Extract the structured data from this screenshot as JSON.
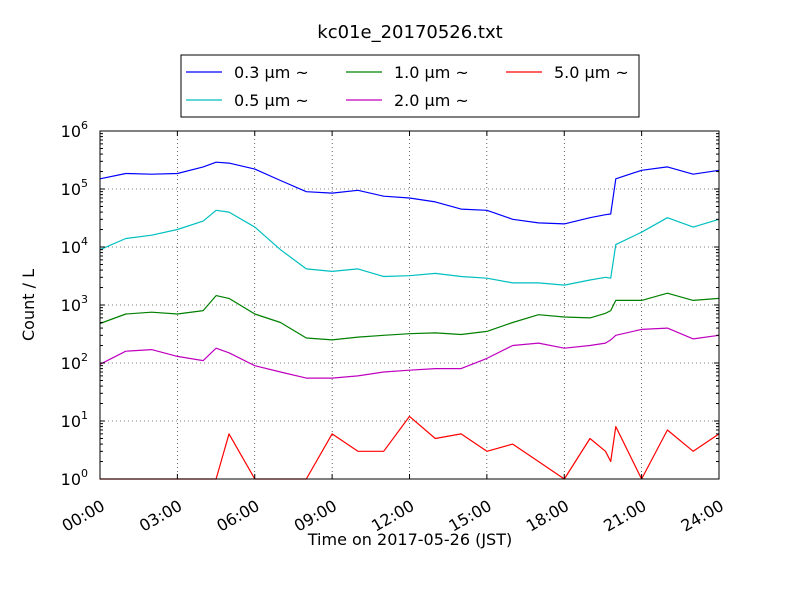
{
  "chart_data": {
    "type": "line",
    "title": "kc01e_20170526.txt",
    "xlabel": "Time on 2017-05-26 (JST)",
    "ylabel": "Count / L",
    "y_scale": "log",
    "ylim": [
      1,
      1000000
    ],
    "xlim_hours": [
      0,
      24
    ],
    "x_tick_labels": [
      "00:00",
      "03:00",
      "06:00",
      "09:00",
      "12:00",
      "15:00",
      "18:00",
      "21:00",
      "24:00"
    ],
    "y_tick_labels": [
      {
        "base": "10",
        "exp": "0"
      },
      {
        "base": "10",
        "exp": "1"
      },
      {
        "base": "10",
        "exp": "2"
      },
      {
        "base": "10",
        "exp": "3"
      },
      {
        "base": "10",
        "exp": "4"
      },
      {
        "base": "10",
        "exp": "5"
      },
      {
        "base": "10",
        "exp": "6"
      }
    ],
    "grid": true,
    "legend_position": "top-center",
    "x_hours": [
      0,
      1,
      2,
      3,
      4,
      4.5,
      5,
      6,
      7,
      8,
      9,
      10,
      11,
      12,
      13,
      14,
      15,
      16,
      17,
      18,
      19,
      19.6,
      19.8,
      20,
      21,
      22,
      23,
      24
    ],
    "series": [
      {
        "name": "0.3 μm ~",
        "color": "#0000ff",
        "values": [
          150000,
          185000,
          180000,
          185000,
          240000,
          290000,
          280000,
          220000,
          140000,
          90000,
          85000,
          95000,
          75000,
          70000,
          60000,
          45000,
          43000,
          30000,
          26000,
          25000,
          32000,
          36000,
          37000,
          150000,
          210000,
          240000,
          180000,
          210000
        ]
      },
      {
        "name": "0.5 μm ~",
        "color": "#00bfbf",
        "values": [
          9000,
          14000,
          16000,
          20000,
          28000,
          43000,
          40000,
          22000,
          9000,
          4200,
          3800,
          4200,
          3100,
          3200,
          3500,
          3100,
          2900,
          2400,
          2400,
          2200,
          2700,
          3000,
          2900,
          11000,
          18000,
          32000,
          22000,
          30000
        ]
      },
      {
        "name": "1.0 μm ~",
        "color": "#008000",
        "values": [
          480,
          700,
          750,
          700,
          800,
          1450,
          1300,
          700,
          500,
          270,
          250,
          280,
          300,
          320,
          330,
          310,
          350,
          500,
          680,
          620,
          600,
          720,
          800,
          1200,
          1200,
          1600,
          1200,
          1300
        ]
      },
      {
        "name": "2.0 μm ~",
        "color": "#bf00bf",
        "values": [
          95,
          160,
          170,
          130,
          110,
          180,
          150,
          90,
          70,
          55,
          55,
          60,
          70,
          75,
          80,
          80,
          120,
          200,
          220,
          180,
          200,
          220,
          250,
          300,
          380,
          400,
          260,
          300
        ]
      },
      {
        "name": "5.0 μm ~",
        "color": "#ff0000",
        "values": [
          1,
          1,
          1,
          1,
          1,
          1,
          6,
          1,
          1,
          1,
          6,
          3,
          3,
          12,
          5,
          6,
          3,
          4,
          2,
          1,
          5,
          3,
          2,
          8,
          1,
          7,
          3,
          6
        ]
      }
    ]
  }
}
